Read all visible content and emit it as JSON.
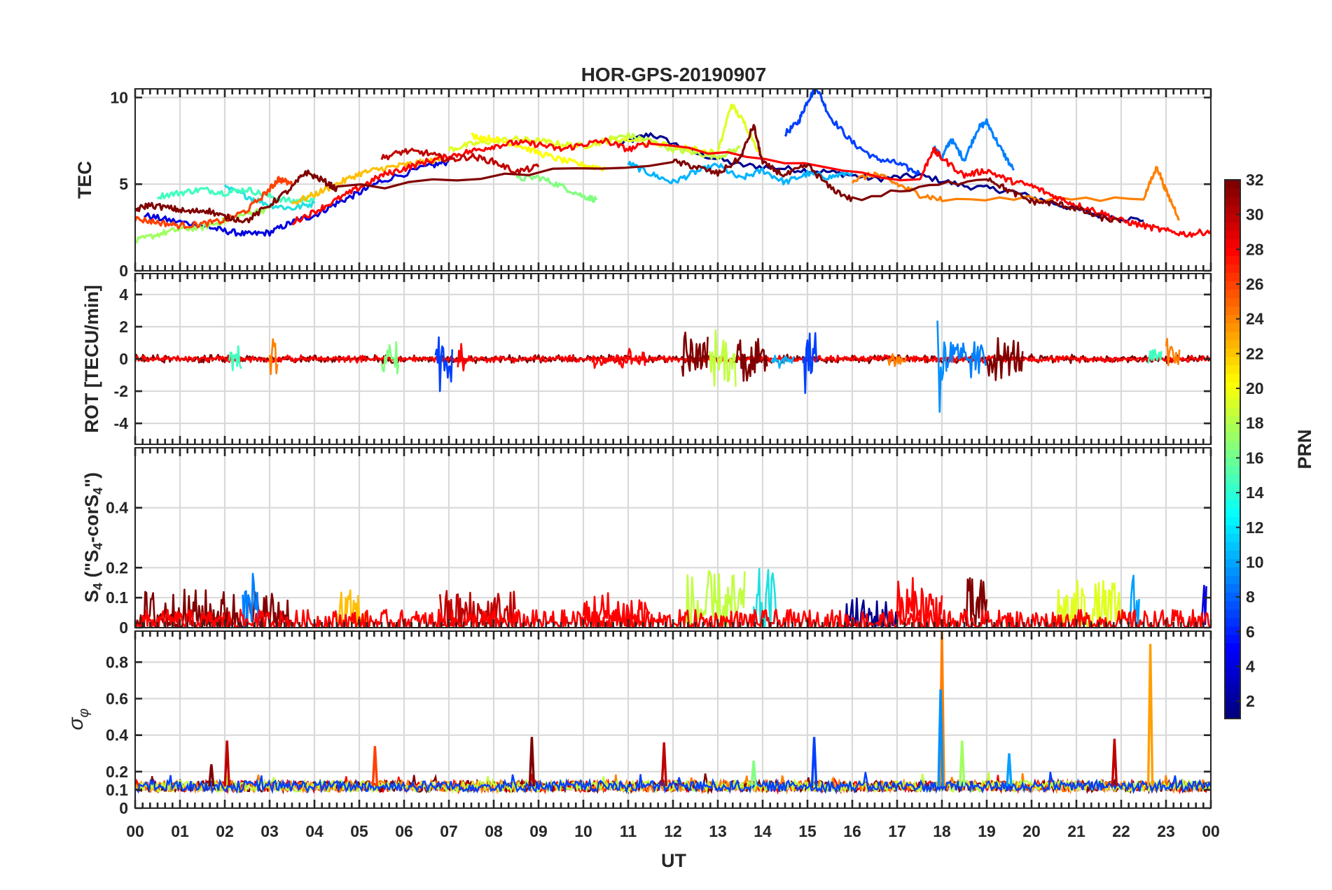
{
  "figure": {
    "title": "HOR-GPS-20190907",
    "xlabel": "UT",
    "x_tick_labels": [
      "00",
      "01",
      "02",
      "03",
      "04",
      "05",
      "06",
      "07",
      "08",
      "09",
      "10",
      "11",
      "12",
      "13",
      "14",
      "15",
      "16",
      "17",
      "18",
      "19",
      "20",
      "21",
      "22",
      "23",
      "00"
    ]
  },
  "colorbar": {
    "label": "PRN",
    "range": [
      1,
      32
    ],
    "ticks": [
      2,
      4,
      6,
      8,
      10,
      12,
      14,
      16,
      18,
      20,
      22,
      24,
      26,
      28,
      30,
      32
    ],
    "colormap": "jet"
  },
  "chart_data": [
    {
      "type": "line",
      "panel": "TEC",
      "ylabel": "TEC",
      "ylim": [
        0,
        10.5
      ],
      "yticks": [
        0,
        5,
        10
      ],
      "xlim": [
        0,
        24
      ],
      "grid": true,
      "series": [
        {
          "prn": 1,
          "color": "#00008f",
          "x": [
            10.8,
            11.5,
            12.5,
            13.5,
            14.5,
            15.5,
            16.5,
            17.5,
            18.5,
            19.5,
            20.5,
            21.5,
            22.5
          ],
          "y": [
            7.3,
            7.9,
            6.8,
            6.1,
            5.9,
            5.7,
            5.3,
            5.5,
            4.9,
            4.6,
            3.9,
            3.2,
            2.9
          ]
        },
        {
          "prn": 3,
          "color": "#0000e0",
          "x": [
            0.2,
            0.8,
            1.5,
            2.0,
            2.5,
            3.0,
            3.5,
            4.0,
            4.5,
            5.0,
            5.5,
            6.5,
            7.0
          ],
          "y": [
            3.2,
            2.9,
            2.6,
            2.3,
            2.1,
            2.2,
            2.8,
            3.2,
            3.9,
            4.5,
            5.2,
            6.0,
            6.3
          ]
        },
        {
          "prn": 5,
          "color": "#0040ff",
          "x": [
            14.5,
            14.8,
            15.0,
            15.2,
            15.5,
            16.0,
            16.5,
            17.0,
            17.5
          ],
          "y": [
            7.9,
            8.6,
            9.8,
            10.6,
            8.9,
            7.4,
            6.5,
            6.2,
            5.6
          ]
        },
        {
          "prn": 7,
          "color": "#0080ff",
          "x": [
            17.8,
            18.0,
            18.2,
            18.5,
            18.8,
            19.0,
            19.3,
            19.6
          ],
          "y": [
            7.2,
            6.5,
            7.6,
            6.4,
            8.2,
            8.6,
            7.1,
            5.8
          ]
        },
        {
          "prn": 9,
          "color": "#00b4ff",
          "x": [
            11.0,
            11.5,
            12.0,
            12.5,
            13.0,
            13.5,
            14.0,
            14.5,
            15.0,
            15.5,
            16.0
          ],
          "y": [
            6.2,
            5.6,
            5.1,
            5.7,
            6.1,
            5.3,
            5.8,
            5.1,
            5.6,
            5.4,
            5.7
          ]
        },
        {
          "prn": 12,
          "color": "#20e0e0",
          "x": [
            2.0,
            2.5,
            3.0,
            3.5,
            4.0
          ],
          "y": [
            4.8,
            4.3,
            3.8,
            3.6,
            3.9
          ]
        },
        {
          "prn": 13,
          "color": "#40ffbf",
          "x": [
            0.5,
            1.0,
            1.5,
            2.0,
            2.5,
            3.0,
            3.5,
            4.0
          ],
          "y": [
            4.3,
            4.5,
            4.7,
            4.5,
            4.7,
            4.3,
            4.0,
            4.2
          ]
        },
        {
          "prn": 16,
          "color": "#80ff80",
          "x": [
            8.5,
            9.0,
            9.5,
            10.0,
            10.3
          ],
          "y": [
            5.3,
            5.4,
            4.9,
            4.3,
            4.1
          ]
        },
        {
          "prn": 18,
          "color": "#9fff60",
          "x": [
            0.0,
            0.5,
            1.0,
            1.5,
            2.0,
            2.5,
            3.0
          ],
          "y": [
            1.7,
            2.1,
            2.4,
            2.5,
            2.9,
            3.3,
            3.6
          ]
        },
        {
          "prn": 19,
          "color": "#c0ff40",
          "x": [
            10.5,
            11.0,
            11.5,
            12.0,
            12.5,
            13.0,
            13.5
          ],
          "y": [
            7.6,
            7.8,
            7.5,
            7.0,
            6.8,
            6.6,
            7.1
          ]
        },
        {
          "prn": 20,
          "color": "#e0ff20",
          "x": [
            7.0,
            7.5,
            8.0,
            8.5,
            9.0,
            9.5,
            10.0,
            10.5,
            11.0,
            12.0,
            13.0,
            13.3,
            13.6,
            14.0
          ],
          "y": [
            7.0,
            7.3,
            7.5,
            7.6,
            7.5,
            7.3,
            7.2,
            7.5,
            7.6,
            7.2,
            6.8,
            9.6,
            8.5,
            6.5
          ]
        },
        {
          "prn": 21,
          "color": "#ffff00",
          "x": [
            7.5,
            8.0,
            8.5,
            9.0,
            9.5,
            10.0,
            10.5
          ],
          "y": [
            7.8,
            7.6,
            7.3,
            6.8,
            6.4,
            6.1,
            5.9
          ]
        },
        {
          "prn": 22,
          "color": "#ffbf00",
          "x": [
            3.5,
            4.0,
            4.5,
            5.0,
            5.5,
            6.0,
            6.5,
            7.0
          ],
          "y": [
            3.9,
            4.4,
            5.0,
            5.6,
            5.9,
            6.1,
            6.3,
            6.5
          ]
        },
        {
          "prn": 24,
          "color": "#ff8000",
          "x": [
            16.0,
            16.5,
            17.0,
            17.5,
            18.0,
            22.5,
            22.8,
            23.0,
            23.3
          ],
          "y": [
            5.2,
            5.6,
            5.0,
            4.4,
            4.1,
            4.2,
            6.0,
            4.6,
            3.0
          ]
        },
        {
          "prn": 26,
          "color": "#ff4000",
          "x": [
            0.0,
            0.5,
            1.0,
            1.5,
            2.0,
            2.5,
            3.0,
            3.2,
            3.5
          ],
          "y": [
            3.0,
            2.8,
            2.6,
            2.7,
            2.9,
            3.5,
            4.7,
            5.3,
            5.0
          ]
        },
        {
          "prn": 28,
          "color": "#ff0000",
          "x": [
            3.5,
            4.0,
            4.5,
            5.0,
            5.5,
            6.0,
            6.5,
            7.0,
            7.5,
            8.0,
            8.5,
            9.0,
            9.5,
            10.0,
            10.5,
            11.0,
            11.5,
            17.5,
            17.8,
            18.0,
            18.5,
            19.0,
            19.5,
            20.0,
            20.5,
            21.0,
            21.5,
            22.0,
            22.5,
            23.0,
            23.5,
            24.0
          ],
          "y": [
            2.8,
            3.4,
            4.1,
            4.8,
            5.5,
            5.9,
            6.3,
            6.6,
            6.9,
            7.2,
            7.4,
            7.3,
            7.0,
            7.3,
            7.5,
            7.0,
            7.4,
            5.2,
            7.0,
            6.5,
            5.5,
            5.8,
            5.2,
            4.9,
            4.3,
            3.8,
            3.4,
            2.9,
            2.6,
            2.3,
            2.1,
            2.3
          ]
        },
        {
          "prn": 30,
          "color": "#c00000",
          "x": [
            5.5,
            6.0,
            6.5,
            7.0,
            7.5,
            8.0,
            8.5,
            9.0
          ],
          "y": [
            6.5,
            6.9,
            6.8,
            6.4,
            6.6,
            6.3,
            5.7,
            6.0
          ]
        },
        {
          "prn": 32,
          "color": "#800000",
          "x": [
            0.0,
            0.3,
            0.8,
            1.2,
            1.6,
            2.0,
            2.5,
            3.0,
            3.5,
            3.8,
            4.2,
            4.5,
            12.0,
            12.5,
            13.0,
            13.5,
            13.8,
            14.0,
            14.5,
            15.0,
            15.5,
            16.0,
            19.0,
            19.5,
            20.0,
            20.5,
            21.0,
            21.5,
            22.0
          ],
          "y": [
            3.5,
            3.8,
            3.6,
            3.4,
            3.5,
            3.1,
            2.9,
            3.8,
            4.8,
            5.7,
            5.2,
            4.7,
            6.3,
            6.0,
            5.6,
            6.5,
            8.4,
            6.2,
            5.5,
            6.1,
            4.8,
            4.1,
            5.4,
            4.6,
            4.0,
            3.9,
            3.6,
            3.1,
            2.8
          ]
        }
      ]
    },
    {
      "type": "line",
      "panel": "ROT",
      "ylabel": "ROT [TECU/min]",
      "ylim": [
        -5.3,
        5.3
      ],
      "yticks": [
        -4,
        -2,
        0,
        2,
        4
      ],
      "xlim": [
        0,
        24
      ],
      "grid": true,
      "bursts": [
        {
          "prn": 32,
          "color": "#800000",
          "x": [
            0.0,
            24.0
          ],
          "amplitude": 0.3
        },
        {
          "prn": 28,
          "color": "#ff0000",
          "x": [
            0.0,
            24.0
          ],
          "amplitude": 0.25
        },
        {
          "prn": 13,
          "color": "#40ffbf",
          "x": [
            2.1,
            2.4
          ],
          "amplitude": 1.0
        },
        {
          "prn": 24,
          "color": "#ff8000",
          "x": [
            3.0,
            3.2
          ],
          "amplitude": 1.6
        },
        {
          "prn": 16,
          "color": "#80ff80",
          "x": [
            5.5,
            5.9
          ],
          "amplitude": 1.5
        },
        {
          "prn": 5,
          "color": "#0040ff",
          "x": [
            6.7,
            7.1
          ],
          "amplitude": 2.4
        },
        {
          "prn": 28,
          "color": "#ff0000",
          "x": [
            7.2,
            7.4
          ],
          "amplitude": 2.0
        },
        {
          "prn": 28,
          "color": "#ff0000",
          "x": [
            10.2,
            11.4
          ],
          "amplitude": 0.8
        },
        {
          "prn": 32,
          "color": "#800000",
          "x": [
            12.2,
            12.8
          ],
          "amplitude": 2.3
        },
        {
          "prn": 19,
          "color": "#c0ff40",
          "x": [
            12.8,
            13.4
          ],
          "amplitude": 2.0
        },
        {
          "prn": 32,
          "color": "#800000",
          "x": [
            13.4,
            14.1
          ],
          "amplitude": 2.4
        },
        {
          "prn": 9,
          "color": "#00b4ff",
          "x": [
            14.2,
            14.7
          ],
          "amplitude": 0.8
        },
        {
          "prn": 5,
          "color": "#0040ff",
          "x": [
            14.9,
            15.2
          ],
          "amplitude": 2.6
        },
        {
          "prn": 24,
          "color": "#ff8000",
          "x": [
            16.8,
            17.2
          ],
          "amplitude": 0.8
        },
        {
          "prn": 10,
          "color": "#0090ff",
          "x": [
            17.9,
            18.1
          ],
          "amplitude": 4.9
        },
        {
          "prn": 7,
          "color": "#0080ff",
          "x": [
            18.1,
            19.0
          ],
          "amplitude": 1.6
        },
        {
          "prn": 32,
          "color": "#800000",
          "x": [
            19.0,
            19.8
          ],
          "amplitude": 1.6
        },
        {
          "prn": 13,
          "color": "#40ffbf",
          "x": [
            22.6,
            22.9
          ],
          "amplitude": 0.9
        },
        {
          "prn": 24,
          "color": "#ff8000",
          "x": [
            23.0,
            23.3
          ],
          "amplitude": 1.8
        }
      ]
    },
    {
      "type": "line",
      "panel": "S4",
      "ylabel": "S4 (\"S4-corS4\")",
      "ylim": [
        0,
        0.6
      ],
      "yticks": [
        0,
        0.1,
        0.2,
        0.4
      ],
      "ytick_labels": [
        "0",
        "0.1",
        "0.2",
        "0.4"
      ],
      "xlim": [
        0,
        24
      ],
      "grid": true,
      "bursts": [
        {
          "prn": 32,
          "color": "#800000",
          "x": [
            0.0,
            3.5
          ],
          "amplitude": 0.13
        },
        {
          "prn": 7,
          "color": "#0080ff",
          "x": [
            2.4,
            2.8
          ],
          "amplitude": 0.18
        },
        {
          "prn": 22,
          "color": "#ffbf00",
          "x": [
            4.5,
            5.2
          ],
          "amplitude": 0.13
        },
        {
          "prn": 30,
          "color": "#c00000",
          "x": [
            6.8,
            8.5
          ],
          "amplitude": 0.13
        },
        {
          "prn": 28,
          "color": "#ff0000",
          "x": [
            10.0,
            11.5
          ],
          "amplitude": 0.13
        },
        {
          "prn": 19,
          "color": "#c0ff40",
          "x": [
            12.3,
            13.6
          ],
          "amplitude": 0.19
        },
        {
          "prn": 12,
          "color": "#20e0e0",
          "x": [
            13.8,
            14.3
          ],
          "amplitude": 0.2
        },
        {
          "prn": 1,
          "color": "#00008f",
          "x": [
            15.8,
            17.0
          ],
          "amplitude": 0.1
        },
        {
          "prn": 28,
          "color": "#ff0000",
          "x": [
            17.0,
            18.0
          ],
          "amplitude": 0.17
        },
        {
          "prn": 32,
          "color": "#800000",
          "x": [
            18.5,
            19.0
          ],
          "amplitude": 0.17
        },
        {
          "prn": 20,
          "color": "#e0ff20",
          "x": [
            20.5,
            22.0
          ],
          "amplitude": 0.16
        },
        {
          "prn": 11,
          "color": "#00a0ff",
          "x": [
            22.2,
            22.4
          ],
          "amplitude": 0.2
        },
        {
          "prn": 3,
          "color": "#0000e0",
          "x": [
            23.8,
            23.9
          ],
          "amplitude": 0.2
        },
        {
          "prn": 28,
          "color": "#ff0000",
          "x": [
            0.0,
            24.0
          ],
          "amplitude": 0.06
        }
      ]
    },
    {
      "type": "line",
      "panel": "sigma_phi",
      "ylabel": "σφ",
      "ylim": [
        0,
        0.97
      ],
      "yticks": [
        0,
        0.1,
        0.2,
        0.4,
        0.6,
        0.8
      ],
      "ytick_labels": [
        "0",
        "0.1",
        "0.2",
        "0.4",
        "0.6",
        "0.8"
      ],
      "xlim": [
        0,
        24
      ],
      "grid": true,
      "baseline": 0.12,
      "spikes": [
        {
          "prn": 32,
          "color": "#800000",
          "x": 1.7,
          "y": 0.24
        },
        {
          "prn": 30,
          "color": "#c00000",
          "x": 2.05,
          "y": 0.37
        },
        {
          "prn": 26,
          "color": "#ff4000",
          "x": 5.35,
          "y": 0.34
        },
        {
          "prn": 32,
          "color": "#800000",
          "x": 8.85,
          "y": 0.39
        },
        {
          "prn": 30,
          "color": "#c00000",
          "x": 11.8,
          "y": 0.36
        },
        {
          "prn": 16,
          "color": "#80ff80",
          "x": 13.8,
          "y": 0.26
        },
        {
          "prn": 5,
          "color": "#0040ff",
          "x": 15.15,
          "y": 0.39
        },
        {
          "prn": 24,
          "color": "#ff8000",
          "x": 18.0,
          "y": 0.97
        },
        {
          "prn": 10,
          "color": "#0090ff",
          "x": 17.97,
          "y": 0.65
        },
        {
          "prn": 18,
          "color": "#9fff60",
          "x": 18.45,
          "y": 0.37
        },
        {
          "prn": 11,
          "color": "#00a0ff",
          "x": 19.5,
          "y": 0.3
        },
        {
          "prn": 30,
          "color": "#c00000",
          "x": 21.85,
          "y": 0.38
        },
        {
          "prn": 23,
          "color": "#ff9f00",
          "x": 22.65,
          "y": 0.9
        }
      ]
    }
  ]
}
